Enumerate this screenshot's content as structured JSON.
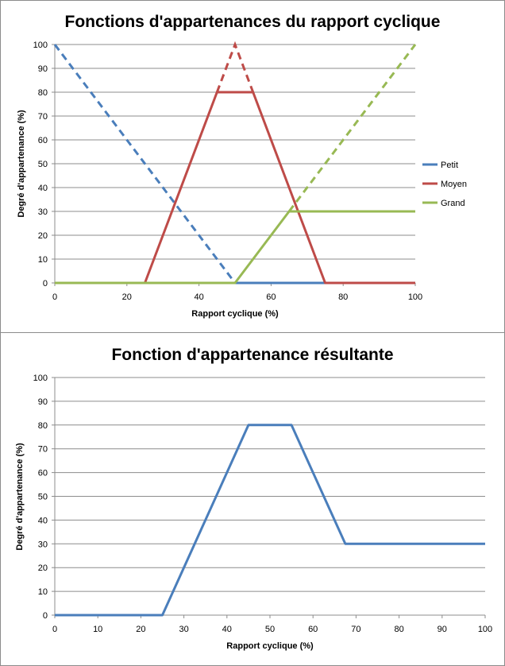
{
  "chart_data": [
    {
      "type": "line",
      "title": "Fonctions d'appartenances du rapport cyclique",
      "xlabel": "Rapport cyclique  (%)",
      "ylabel": "Degré d'appartenance  (%)",
      "xlim": [
        0,
        100
      ],
      "ylim": [
        0,
        100
      ],
      "x_ticks": [
        0,
        20,
        40,
        60,
        80,
        100
      ],
      "y_ticks": [
        0,
        10,
        20,
        30,
        40,
        50,
        60,
        70,
        80,
        90,
        100
      ],
      "grid": "horizontal",
      "legend_position": "right",
      "series": [
        {
          "name": "Petit",
          "color": "#4a7ebb",
          "solid": [
            [
              0,
              0
            ],
            [
              50,
              0
            ],
            [
              100,
              0
            ]
          ],
          "dashed": [
            [
              0,
              100
            ],
            [
              50,
              0
            ]
          ]
        },
        {
          "name": "Moyen",
          "color": "#be4b48",
          "solid": [
            [
              0,
              0
            ],
            [
              25,
              0
            ],
            [
              45,
              80
            ],
            [
              55,
              80
            ],
            [
              75,
              0
            ],
            [
              100,
              0
            ]
          ],
          "dashed": [
            [
              45,
              80
            ],
            [
              50,
              100
            ],
            [
              55,
              80
            ]
          ]
        },
        {
          "name": "Grand",
          "color": "#98b954",
          "solid": [
            [
              0,
              0
            ],
            [
              50,
              0
            ],
            [
              65,
              30
            ],
            [
              100,
              30
            ]
          ],
          "dashed": [
            [
              65,
              30
            ],
            [
              100,
              100
            ]
          ]
        }
      ]
    },
    {
      "type": "line",
      "title": "Fonction d'appartenance résultante",
      "xlabel": "Rapport cyclique  (%)",
      "ylabel": "Degré d'appartenance  (%)",
      "xlim": [
        0,
        100
      ],
      "ylim": [
        0,
        100
      ],
      "x_ticks": [
        0,
        10,
        20,
        30,
        40,
        50,
        60,
        70,
        80,
        90,
        100
      ],
      "y_ticks": [
        0,
        10,
        20,
        30,
        40,
        50,
        60,
        70,
        80,
        90,
        100
      ],
      "grid": "horizontal",
      "series": [
        {
          "color": "#4a7ebb",
          "solid": [
            [
              0,
              0
            ],
            [
              25,
              0
            ],
            [
              45,
              80
            ],
            [
              55,
              80
            ],
            [
              67.5,
              30
            ],
            [
              100,
              30
            ]
          ]
        }
      ]
    }
  ]
}
